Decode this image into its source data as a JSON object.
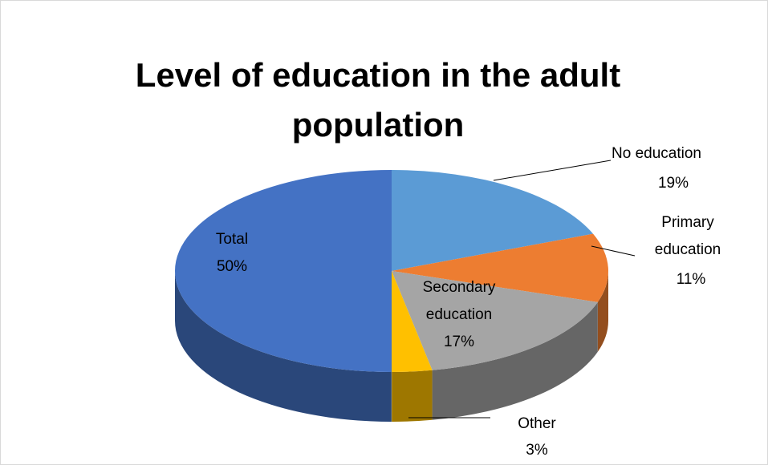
{
  "chart_data": {
    "type": "pie",
    "title": "Level of education in the adult population",
    "slices": [
      {
        "label": "No education",
        "value": 19,
        "display": "19%",
        "color": "#5b9bd5"
      },
      {
        "label": "Primary education",
        "value": 11,
        "display": "11%",
        "color": "#ed7d31"
      },
      {
        "label": "Secondary education",
        "value": 17,
        "display": "17%",
        "color": "#a5a5a5"
      },
      {
        "label": "Other",
        "value": 3,
        "display": "3%",
        "color": "#ffc000"
      },
      {
        "label": "Total",
        "value": 50,
        "display": "50%",
        "color": "#4472c4"
      }
    ],
    "style": "3d-pie",
    "legend": "none",
    "data_labels": "outside-with-leader-lines"
  }
}
